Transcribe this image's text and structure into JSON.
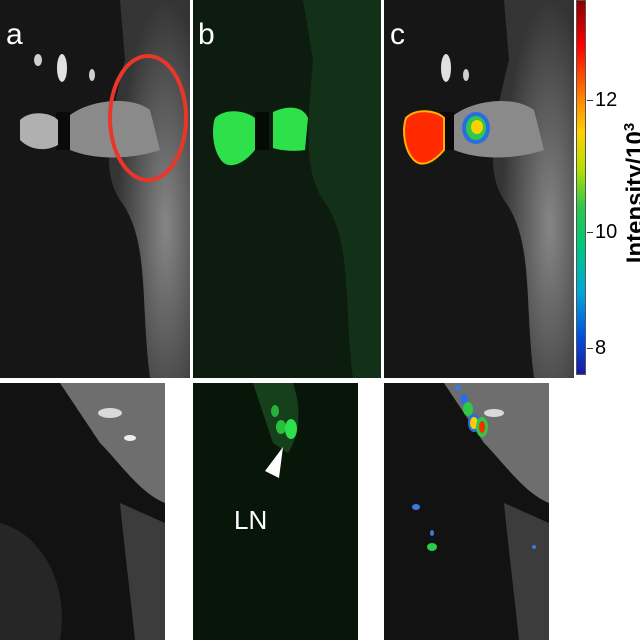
{
  "panels": {
    "a": "a",
    "b": "b",
    "c": "c"
  },
  "annotation": {
    "lymph_node": "LN"
  },
  "colorbar": {
    "title": "Intensity/10",
    "exponent": "3",
    "ticks": [
      "12",
      "10",
      "8"
    ]
  },
  "colors": {
    "highlight_circle": "#e8372a",
    "fluorescence_green": "#2ee04a",
    "background": "#ffffff"
  }
}
